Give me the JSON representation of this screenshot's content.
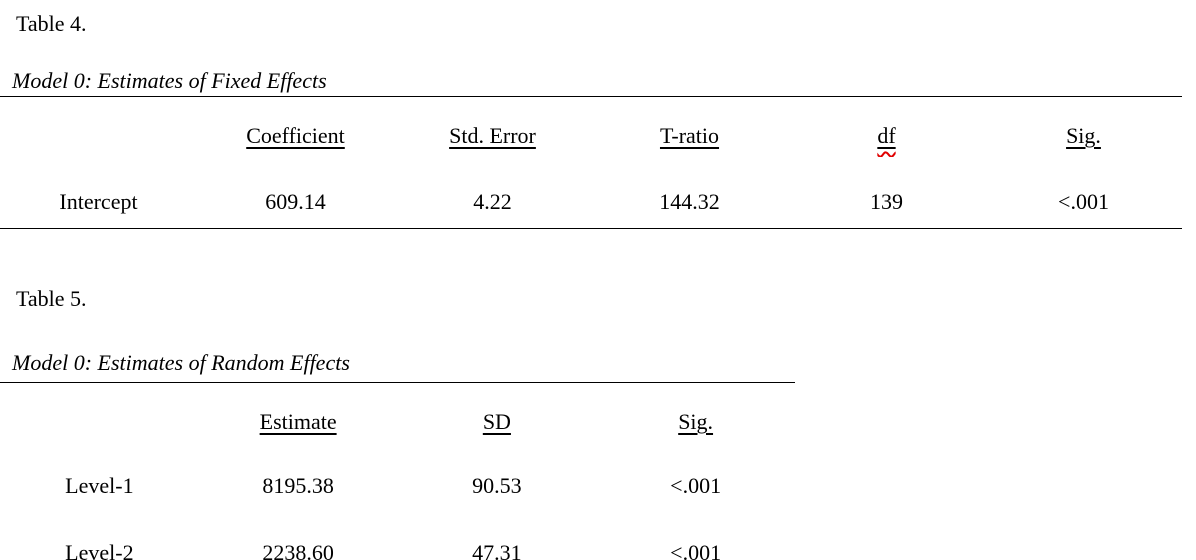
{
  "colors": {
    "text": "#000000",
    "background": "#ffffff",
    "rule": "#000000",
    "spellcheck_red": "#e00000"
  },
  "table4": {
    "label": "Table 4.",
    "caption": "Model 0: Estimates of Fixed Effects",
    "columns": [
      "Coefficient",
      "Std. Error",
      "T-ratio",
      "df",
      "Sig."
    ],
    "spellcheck_flagged_header": "df",
    "row_header": "Intercept",
    "values": [
      "609.14",
      "4.22",
      "144.32",
      "139",
      "<.001"
    ]
  },
  "table5": {
    "label": "Table 5.",
    "caption": "Model 0: Estimates of Random Effects",
    "columns": [
      "Estimate",
      "SD",
      "Sig."
    ],
    "rows": [
      {
        "name": "Level-1",
        "values": [
          "8195.38",
          "90.53",
          "<.001"
        ]
      },
      {
        "name": "Level-2",
        "values": [
          "2238.60",
          "47.31",
          "<.001"
        ]
      }
    ]
  }
}
